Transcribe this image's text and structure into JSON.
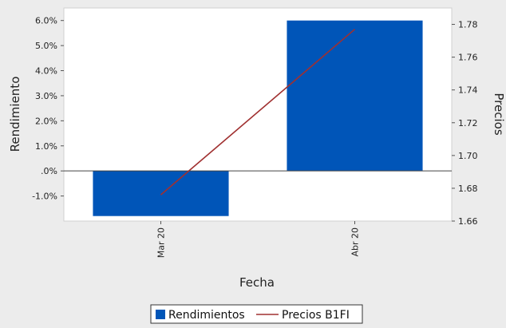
{
  "chart_data": {
    "type": "bar",
    "categories": [
      "Mar 20",
      "Abr 20"
    ],
    "series": [
      {
        "name": "Rendimientos",
        "type": "bar",
        "axis": "left",
        "values": [
          -1.8,
          6.0
        ],
        "color": "#0055b8"
      },
      {
        "name": "Precios B1FI",
        "type": "line",
        "axis": "right",
        "values": [
          1.676,
          1.777
        ],
        "color": "#a03030"
      }
    ],
    "xlabel": "Fecha",
    "ylabel": "Rendimiento",
    "y2label": "Precios",
    "ylim": [
      -2.0,
      6.5
    ],
    "y2lim": [
      1.66,
      1.79
    ],
    "yticks": [
      "-1.0%",
      ".0%",
      "1.0%",
      "2.0%",
      "3.0%",
      "4.0%",
      "5.0%",
      "6.0%"
    ],
    "ytick_values": [
      -1,
      0,
      1,
      2,
      3,
      4,
      5,
      6
    ],
    "y2ticks": [
      "1.66",
      "1.68",
      "1.70",
      "1.72",
      "1.74",
      "1.76",
      "1.78"
    ],
    "y2tick_values": [
      1.66,
      1.68,
      1.7,
      1.72,
      1.74,
      1.76,
      1.78
    ],
    "grid": false,
    "legend_position": "bottom"
  }
}
